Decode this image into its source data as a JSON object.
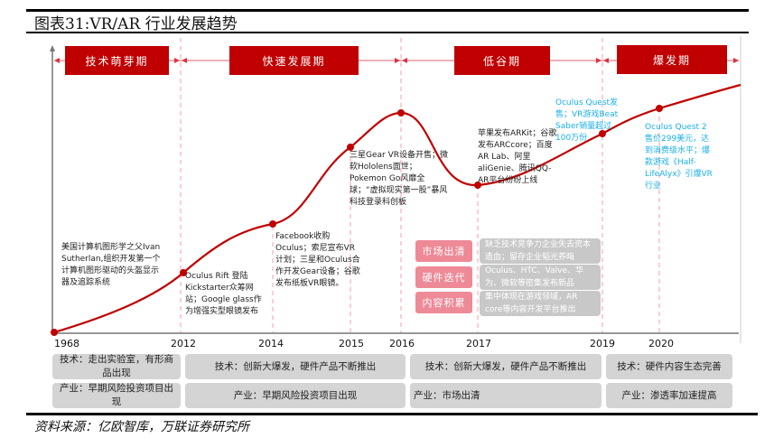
{
  "title": "图表31:VR/AR 行业发展趋势",
  "phases": [
    "技术萌芽期",
    "快速发展期",
    "低谷期",
    "爆发期"
  ],
  "years": [
    "1968",
    "2012",
    "2014",
    "2015",
    "2016",
    "2017",
    "2019",
    "2020"
  ],
  "notes": {
    "y1968": "美国计算机图形学之父Ivan Sutherlan,组织开发第一个计算机图形驱动的头盔显示器及追踪系统",
    "y2012": "Oculus Rift 登陆Kickstarter众筹网站；Google glass作为增强实型眼镜发布",
    "y2014": "Facebook收购Oculus；索尼宣布VR计划；三星和Oculus合作开发Gear设备；谷歌发布纸板VR眼镜。",
    "y2015": "三星Gear VR设备开售；微软Hololens面世；Pokemon Go风靡全球；“虚拟现实第一股”暴风科技登录科创板",
    "y2017": "苹果发布ARKit；谷歌发布ARCcore；百度AR Lab、阿里aliGenie、腾讯QQ-AR平台纷纷上线",
    "y2019": "Oculus Quest发售；VR游戏Beat Saber销量超过100万份",
    "y2020": "Oculus Quest 2售价299美元，达到消费级水平；爆款游戏《Half-LifeAlyx》引爆VR行业"
  },
  "trough_factors": [
    {
      "label": "市场出清",
      "desc": "缺乏技术竞争力企业失去资本造血；留存企业韬光养晦"
    },
    {
      "label": "硬件迭代",
      "desc": "Oculus、HTC、Valve、华为、微软等密集发布新品"
    },
    {
      "label": "内容积累",
      "desc": "集中体现在游戏领域，AR core等内容开发平台推出"
    }
  ],
  "tech_row": [
    "技术：走出实验室，有形商品出现",
    "技术：创新大爆发，硬件产品不断推出",
    "技术：创新大爆发，硬件产品不断推出",
    "技术：硬件内容生态完善"
  ],
  "industry_row": [
    "产业：早期风险投资项目出现",
    "产业：早期风险投资项目出现",
    "产业：市场出清",
    "产业：渗透率加速提高"
  ],
  "source": "资料来源：亿欧智库，万联证券研究所",
  "colors": {
    "curve": "#c00000",
    "phase": "#c00000",
    "highlight_text": "#1ab0ea",
    "factor_label": "#ee8a97",
    "factor_box": "#c8c8c8"
  }
}
